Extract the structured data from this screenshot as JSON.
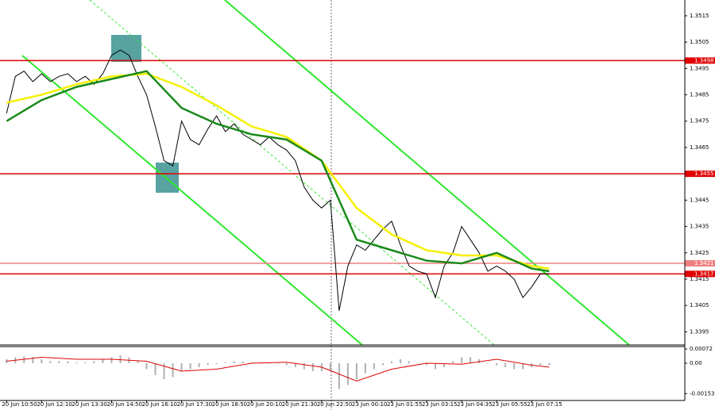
{
  "chart_data": [
    {
      "type": "line",
      "xlim": [
        -3,
        310
      ],
      "ylim": [
        1.339,
        1.3521
      ],
      "yticks": [
        1.3515,
        1.3505,
        1.3495,
        1.3485,
        1.3475,
        1.3465,
        1.3445,
        1.3435,
        1.3425,
        1.3415,
        1.3405,
        1.3395
      ],
      "levels": [
        {
          "value": 1.3498,
          "color": "#e00000"
        },
        {
          "value": 1.3455,
          "color": "#e00000"
        },
        {
          "value": 1.3421,
          "color": "#f08080"
        },
        {
          "value": 1.3417,
          "color": "#e00000"
        }
      ],
      "series": [
        {
          "color": "#000000",
          "x": [
            0,
            4,
            8,
            12,
            16,
            20,
            24,
            28,
            32,
            36,
            40,
            44,
            48,
            52,
            56,
            60,
            64,
            68,
            72,
            76,
            80,
            84,
            88,
            92,
            96,
            100,
            104,
            108,
            112,
            116,
            120,
            124,
            128,
            132,
            136,
            140,
            144,
            148,
            152,
            156,
            160,
            164,
            168,
            172,
            176,
            180,
            184,
            188,
            192,
            196,
            200,
            204,
            208,
            212,
            216,
            220,
            224,
            228,
            232,
            236,
            240,
            244,
            248
          ],
          "values": [
            1.3478,
            1.3492,
            1.3494,
            1.349,
            1.3493,
            1.349,
            1.3492,
            1.3493,
            1.349,
            1.3492,
            1.3489,
            1.3493,
            1.35,
            1.3502,
            1.35,
            1.3492,
            1.3485,
            1.3473,
            1.346,
            1.3458,
            1.3475,
            1.3468,
            1.3466,
            1.3472,
            1.3477,
            1.3471,
            1.3474,
            1.347,
            1.3468,
            1.3466,
            1.3469,
            1.3466,
            1.3464,
            1.346,
            1.345,
            1.3445,
            1.3442,
            1.3445,
            1.3403,
            1.342,
            1.3428,
            1.3426,
            1.343,
            1.3434,
            1.3437,
            1.3428,
            1.342,
            1.3418,
            1.3417,
            1.3408,
            1.342,
            1.3425,
            1.3435,
            1.343,
            1.3425,
            1.3418,
            1.342,
            1.3418,
            1.3415,
            1.3408,
            1.3412,
            1.3417,
            1.3417
          ]
        },
        {
          "color": "#f5f000",
          "x": [
            0,
            16,
            32,
            48,
            64,
            80,
            96,
            112,
            128,
            144,
            160,
            176,
            192,
            208,
            224,
            240,
            248
          ],
          "values": [
            1.3482,
            1.3485,
            1.3489,
            1.3492,
            1.3493,
            1.3488,
            1.3481,
            1.3473,
            1.3469,
            1.346,
            1.3442,
            1.3432,
            1.3426,
            1.3424,
            1.3424,
            1.342,
            1.3419
          ]
        },
        {
          "color": "#1a8a1a",
          "x": [
            0,
            16,
            32,
            48,
            64,
            80,
            96,
            112,
            128,
            144,
            160,
            176,
            192,
            208,
            224,
            240,
            248
          ],
          "values": [
            1.3475,
            1.3483,
            1.3488,
            1.3491,
            1.3494,
            1.348,
            1.3474,
            1.347,
            1.3468,
            1.346,
            1.343,
            1.3426,
            1.3422,
            1.3421,
            1.3425,
            1.3419,
            1.3418
          ]
        }
      ]
    },
    {
      "type": "macd",
      "xlim": [
        -3,
        310
      ],
      "ylim": [
        -0.00188,
        0.00084
      ],
      "yticks": [
        0.00072,
        {
          "value": 0,
          "label": "0.00"
        },
        -0.00153
      ],
      "xticks": [
        {
          "value": 0,
          "label": "20 Jun 10:50"
        },
        {
          "value": 16,
          "label": "20 Jun 12:10"
        },
        {
          "value": 32,
          "label": "20 Jun 13:30"
        },
        {
          "value": 48,
          "label": "20 Jun 14:50"
        },
        {
          "value": 64,
          "label": "20 Jun 16:10"
        },
        {
          "value": 80,
          "label": "20 Jun 17:30"
        },
        {
          "value": 96,
          "label": "20 Jun 18:50"
        },
        {
          "value": 112,
          "label": "20 Jun 20:10"
        },
        {
          "value": 128,
          "label": "20 Jun 21:30"
        },
        {
          "value": 144,
          "label": "20 Jun 22:50"
        },
        {
          "value": 160,
          "label": "23 Jun 00:10"
        },
        {
          "value": 176,
          "label": "23 Jun 01:55"
        },
        {
          "value": 192,
          "label": "23 Jun 03:15"
        },
        {
          "value": 208,
          "label": "23 Jun 04:35"
        },
        {
          "value": 224,
          "label": "23 Jun 05:55"
        },
        {
          "value": 240,
          "label": "23 Jun 07:15"
        }
      ],
      "histogram": {
        "color": "#b0b0b0",
        "x": [
          0,
          4,
          8,
          12,
          16,
          20,
          24,
          28,
          32,
          36,
          40,
          44,
          48,
          52,
          56,
          60,
          64,
          68,
          72,
          76,
          80,
          84,
          88,
          92,
          96,
          100,
          104,
          108,
          112,
          116,
          120,
          124,
          128,
          132,
          136,
          140,
          144,
          148,
          152,
          156,
          160,
          164,
          168,
          172,
          176,
          180,
          184,
          188,
          192,
          196,
          200,
          204,
          208,
          212,
          216,
          220,
          224,
          228,
          232,
          236,
          240,
          244,
          248
        ],
        "values": [
          0.0002,
          0.0003,
          0.00035,
          0.0003,
          0.0002,
          0.0001,
          0.0001,
          0.0001,
          5e-05,
          5e-05,
          0.0001,
          0.0002,
          0.0003,
          0.0004,
          0.0003,
          0.0001,
          -0.0003,
          -0.0006,
          -0.0008,
          -0.0007,
          -0.0004,
          -0.0003,
          -0.0002,
          -0.0001,
          -5e-05,
          5e-05,
          0.0001,
          0.0001,
          5e-05,
          5e-05,
          0,
          0,
          -0.0001,
          -0.0002,
          -0.0003,
          -0.0004,
          -0.0004,
          -0.0004,
          -0.0013,
          -0.0011,
          -0.0008,
          -0.0005,
          -0.0003,
          -0.0001,
          0.0001,
          0.0002,
          0.0001,
          0,
          -0.0001,
          -0.0003,
          -0.0002,
          0.0001,
          0.0003,
          0.0003,
          0.0002,
          0,
          -0.0001,
          -0.0002,
          -0.0003,
          -0.0003,
          -0.0002,
          -0.0001,
          -0.0001
        ]
      },
      "signal": {
        "color": "#e00000",
        "x": [
          0,
          16,
          32,
          48,
          64,
          80,
          96,
          112,
          128,
          144,
          160,
          176,
          192,
          208,
          224,
          240,
          248
        ],
        "values": [
          0.0001,
          0.0003,
          0.0002,
          0.0002,
          0.0001,
          -0.0004,
          -0.0003,
          0,
          5e-05,
          -0.0002,
          -0.0009,
          -0.0003,
          0,
          -5e-05,
          0.0002,
          -0.0001,
          -0.0002
        ]
      }
    }
  ]
}
